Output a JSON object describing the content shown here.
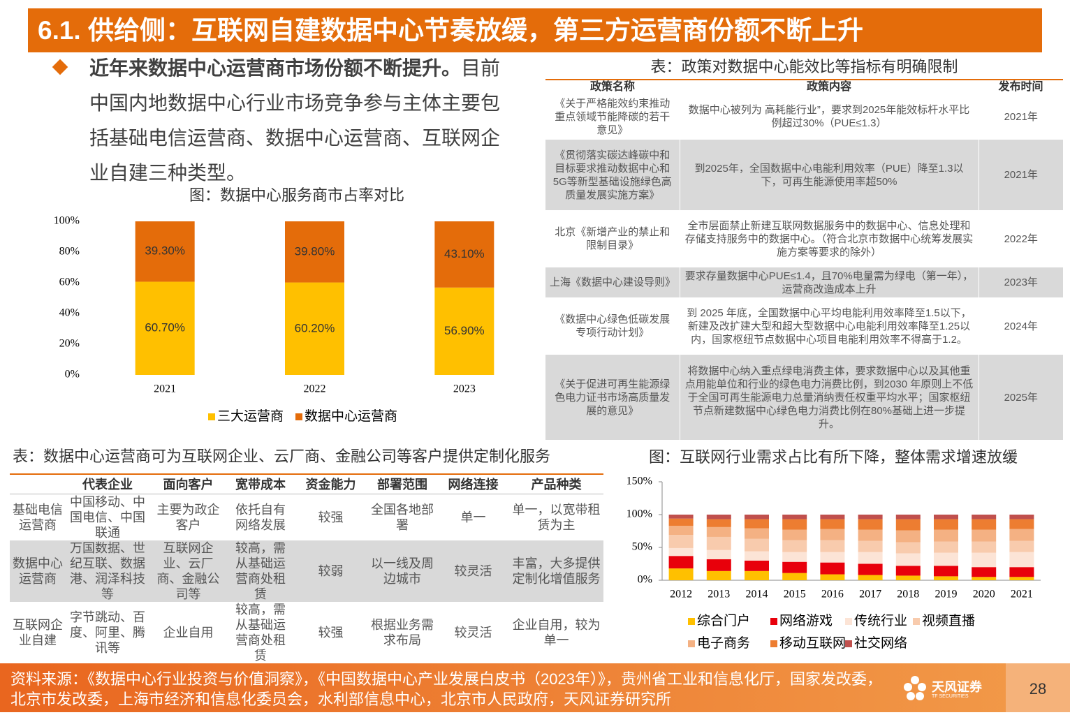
{
  "header": {
    "title": "6.1. 供给侧：互联网自建数据中心节奏放缓，第三方运营商份额不断上升"
  },
  "bullet": {
    "lead": "近年来数据中心运营商市场份额不断提升。",
    "text": "目前中国内地数据中心行业市场竞争参与主体主要包括基础电信运营商、数据中心运营商、互联网企业自建三种类型。"
  },
  "market_share_chart": {
    "type": "bar",
    "stacked": true,
    "title": "图：数据中心服务商市占率对比",
    "categories": [
      "2021",
      "2022",
      "2023"
    ],
    "series": [
      {
        "name": "三大运营商",
        "color": "#ffc000",
        "values": [
          60.7,
          60.2,
          56.9
        ],
        "value_labels": [
          "60.70%",
          "60.20%",
          "56.90%"
        ]
      },
      {
        "name": "数据中心运营商",
        "color": "#e46c0a",
        "values": [
          39.3,
          39.8,
          43.1
        ],
        "value_labels": [
          "39.30%",
          "39.80%",
          "43.10%"
        ]
      }
    ],
    "ylim": [
      0,
      100
    ],
    "yticks": [
      {
        "value": 0,
        "label": "0%"
      },
      {
        "value": 20,
        "label": "20%"
      },
      {
        "value": 40,
        "label": "40%"
      },
      {
        "value": 60,
        "label": "60%"
      },
      {
        "value": 80,
        "label": "80%"
      },
      {
        "value": 100,
        "label": "100%"
      }
    ],
    "grid": false,
    "legend": "bottom"
  },
  "policy_table": {
    "title": "表：政策对数据中心能效比等指标有明确限制",
    "headers": [
      "政策名称",
      "政策内容",
      "发布时间"
    ],
    "rows": [
      [
        "《关于严格能效约束推动重点领域节能降碳的若干意见》",
        "数据中心被列为 高耗能行业”，要求到2025年能效标杆水平比例超过30%（PUE≤1.3）",
        "2021年"
      ],
      [
        "《贯彻落实碳达峰碳中和目标要求推动数据中心和5G等新型基础设施绿色高质量发展实施方案》",
        "到2025年，全国数据中心电能利用效率（PUE）降至1.3以下，可再生能源使用率超50%",
        "2021年"
      ],
      [
        "北京《新增产业的禁止和限制目录》",
        "全市层面禁止新建互联网数据服务中的数据中心、信息处理和存储支持服务中的数据中心。（符合北京市数据中心统筹发展实施方案等要求的除外）",
        "2022年"
      ],
      [
        "上海《数据中心建设导则》",
        "要求存量数据中心PUE≤1.4，且70%电量需为绿电（第一年），运营商改造成本上升",
        "2023年"
      ],
      [
        "《数据中心绿色低碳发展专项行动计划》",
        "到 2025 年底，全国数据中心平均电能利用效率降至1.5以下，新建及改扩建大型和超大型数据中心电能利用效率降至1.25以内，国家枢纽节点数据中心项目电能利用效率不得高于1.2。",
        "2024年"
      ],
      [
        "《关于促进可再生能源绿色电力证书市场高质量发展的意见》",
        "将数据中心纳入重点绿电消费主体，要求数据中心以及其他重点用能单位和行业的绿色电力消费比例，到2030 年原则上不低于全国可再生能源电力总量消纳责任权重平均水平；国家枢纽节点新建数据中心绿色电力消费比例在80%基础上进一步提升。",
        "2025年"
      ]
    ]
  },
  "operator_table": {
    "title": "表：数据中心运营商可为互联网企业、云厂商、金融公司等客户提供定制化服务",
    "headers": [
      "代表企业",
      "面向客户",
      "宽带成本",
      "资金能力",
      "部署范围",
      "网络连接",
      "产品种类"
    ],
    "rows": [
      [
        "基础电信运营商",
        "中国移动、中国电信、中国联通",
        "主要为政企客户",
        "依托自有网络发展",
        "较强",
        "全国各地部署",
        "单一",
        "单一，以宽带租赁为主"
      ],
      [
        "数据中心运营商",
        "万国数据、世纪互联、数据港、润泽科技等",
        "互联网企业、云厂商、金融公司等",
        "较高，需从基础运营商处租赁",
        "较弱",
        "以一线及周边城市",
        "较灵活",
        "丰富，大多提供定制化增值服务"
      ],
      [
        "互联网企业自建",
        "字节跳动、百度、阿里、腾讯等",
        "企业自用",
        "较高，需从基础运营商处租赁",
        "较强",
        "根据业务需求布局",
        "较灵活",
        "企业自用，较为单一"
      ]
    ]
  },
  "demand_chart": {
    "type": "bar",
    "stacked": true,
    "title": "图：互联网行业需求占比有所下降，整体需求增速放缓",
    "categories": [
      "2012",
      "2013",
      "2014",
      "2015",
      "2016",
      "2017",
      "2018",
      "2019",
      "2020",
      "2021"
    ],
    "series": [
      {
        "name": "综合门户",
        "color": "#ffc000",
        "values": [
          18,
          14,
          14,
          11,
          9,
          8,
          7,
          6,
          5,
          5
        ]
      },
      {
        "name": "网络游戏",
        "color": "#e8000b",
        "values": [
          19,
          18,
          16,
          17,
          18,
          17,
          15,
          16,
          15,
          15
        ]
      },
      {
        "name": "传统行业",
        "color": "#fce4d6",
        "values": [
          12,
          14,
          14,
          15,
          16,
          18,
          19,
          20,
          22,
          23
        ]
      },
      {
        "name": "视频直播",
        "color": "#f8cbad",
        "values": [
          20,
          20,
          19,
          18,
          18,
          17,
          17,
          17,
          17,
          17
        ]
      },
      {
        "name": "电子商务",
        "color": "#f4b183",
        "values": [
          14,
          15,
          16,
          16,
          17,
          17,
          18,
          18,
          18,
          18
        ]
      },
      {
        "name": "移动互联网",
        "color": "#ed7d31",
        "values": [
          11,
          12,
          14,
          16,
          15,
          16,
          17,
          16,
          16,
          15
        ]
      },
      {
        "name": "社交网络",
        "color": "#c0504d",
        "values": [
          6,
          7,
          7,
          7,
          7,
          7,
          7,
          7,
          7,
          7
        ]
      }
    ],
    "ylim": [
      0,
      150
    ],
    "yticks": [
      {
        "value": 0,
        "label": "0%"
      },
      {
        "value": 50,
        "label": "50%"
      },
      {
        "value": 100,
        "label": "100%"
      },
      {
        "value": 150,
        "label": "150%"
      }
    ],
    "grid": false,
    "legend": "bottom"
  },
  "footer": {
    "source": "资料来源：《数据中心行业投资与价值洞察》，《中国数据中心产业发展白皮书（2023年）》，贵州省工业和信息化厅，国家发改委，北京市发改委，上海市经济和信息化委员会，水利部信息中心，北京市人民政府，天风证券研究所",
    "brand": "天风证券",
    "brand_en": "TF SECURITIES",
    "page": 28
  }
}
